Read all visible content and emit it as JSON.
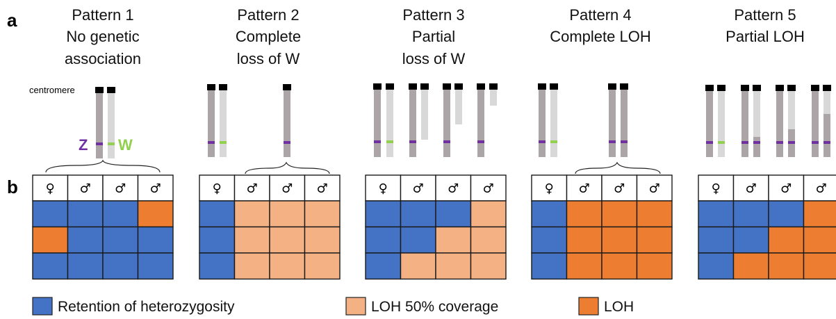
{
  "figure": {
    "panel_a_label": "a",
    "panel_b_label": "b",
    "centromere_label": "centromere",
    "z_label": "Z",
    "w_label": "W"
  },
  "colors": {
    "retention": "#4472c4",
    "loh50": "#f4b183",
    "loh": "#ed7d31",
    "chrom_z": "#aba5a7",
    "chrom_w": "#d8d8d8",
    "centromere": "#000000",
    "z_marker": "#7030a0",
    "w_marker": "#92d050",
    "grid": "#1a1a1a"
  },
  "patterns": [
    {
      "title": [
        "Pattern 1",
        "No genetic",
        "association"
      ],
      "headers": [
        "♀",
        "♂",
        "♂",
        "♂"
      ],
      "grid": [
        [
          "retention",
          "retention",
          "retention",
          "loh"
        ],
        [
          "loh",
          "retention",
          "retention",
          "retention"
        ],
        [
          "retention",
          "retention",
          "retention",
          "retention"
        ]
      ]
    },
    {
      "title": [
        "Pattern 2",
        "Complete",
        "loss of W"
      ],
      "headers": [
        "♀",
        "♂",
        "♂",
        "♂"
      ],
      "grid": [
        [
          "retention",
          "loh50",
          "loh50",
          "loh50"
        ],
        [
          "retention",
          "loh50",
          "loh50",
          "loh50"
        ],
        [
          "retention",
          "loh50",
          "loh50",
          "loh50"
        ]
      ]
    },
    {
      "title": [
        "Pattern 3",
        "Partial",
        "loss of W"
      ],
      "headers": [
        "♀",
        "♂",
        "♂",
        "♂"
      ],
      "grid": [
        [
          "retention",
          "retention",
          "retention",
          "loh50"
        ],
        [
          "retention",
          "retention",
          "loh50",
          "loh50"
        ],
        [
          "retention",
          "loh50",
          "loh50",
          "loh50"
        ]
      ]
    },
    {
      "title": [
        "Pattern 4",
        "Complete LOH"
      ],
      "headers": [
        "♀",
        "♂",
        "♂",
        "♂"
      ],
      "grid": [
        [
          "retention",
          "loh",
          "loh",
          "loh"
        ],
        [
          "retention",
          "loh",
          "loh",
          "loh"
        ],
        [
          "retention",
          "loh",
          "loh",
          "loh"
        ]
      ]
    },
    {
      "title": [
        "Pattern 5",
        "Partial LOH"
      ],
      "headers": [
        "♀",
        "♂",
        "♂",
        "♂"
      ],
      "grid": [
        [
          "retention",
          "retention",
          "retention",
          "loh"
        ],
        [
          "retention",
          "retention",
          "loh",
          "loh"
        ],
        [
          "retention",
          "loh",
          "loh",
          "loh"
        ]
      ]
    }
  ],
  "legend": [
    {
      "key": "retention",
      "label": "Retention of heterozygosity"
    },
    {
      "key": "loh50",
      "label": "LOH 50% coverage"
    },
    {
      "key": "loh",
      "label": "LOH"
    }
  ]
}
